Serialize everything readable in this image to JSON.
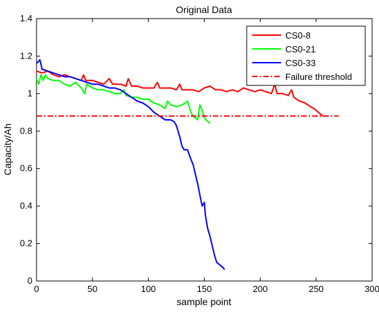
{
  "chart_data": {
    "type": "line",
    "title": "Original Data",
    "xlabel": "sample point",
    "ylabel": "Capacity/Ah",
    "xlim": [
      0,
      300
    ],
    "ylim": [
      0,
      1.4
    ],
    "xticks": [
      "0",
      "50",
      "100",
      "150",
      "200",
      "250",
      "300"
    ],
    "yticks": [
      "0",
      "0.2",
      "0.4",
      "0.6",
      "0.8",
      "1",
      "1.2",
      "1.4"
    ],
    "grid": false,
    "legend_position": "top-right",
    "series": [
      {
        "name": "CS0-8",
        "color": "#ff0000",
        "style": "solid",
        "points": [
          [
            0,
            1.12
          ],
          [
            5,
            1.11
          ],
          [
            10,
            1.12
          ],
          [
            15,
            1.1
          ],
          [
            20,
            1.09
          ],
          [
            25,
            1.1
          ],
          [
            30,
            1.09
          ],
          [
            35,
            1.08
          ],
          [
            40,
            1.07
          ],
          [
            42,
            1.1
          ],
          [
            44,
            1.07
          ],
          [
            50,
            1.07
          ],
          [
            55,
            1.06
          ],
          [
            60,
            1.05
          ],
          [
            65,
            1.08
          ],
          [
            68,
            1.05
          ],
          [
            75,
            1.05
          ],
          [
            80,
            1.04
          ],
          [
            82,
            1.08
          ],
          [
            85,
            1.04
          ],
          [
            90,
            1.04
          ],
          [
            95,
            1.03
          ],
          [
            100,
            1.03
          ],
          [
            105,
            1.03
          ],
          [
            108,
            1.06
          ],
          [
            110,
            1.03
          ],
          [
            115,
            1.03
          ],
          [
            120,
            1.03
          ],
          [
            125,
            1.02
          ],
          [
            128,
            1.05
          ],
          [
            130,
            1.02
          ],
          [
            135,
            1.02
          ],
          [
            140,
            1.02
          ],
          [
            145,
            1.01
          ],
          [
            150,
            1.03
          ],
          [
            155,
            1.04
          ],
          [
            160,
            1.02
          ],
          [
            165,
            1.02
          ],
          [
            170,
            1.01
          ],
          [
            175,
            1.02
          ],
          [
            180,
            1.01
          ],
          [
            185,
            1.03
          ],
          [
            190,
            1.02
          ],
          [
            195,
            1.01
          ],
          [
            200,
            1.02
          ],
          [
            205,
            1.01
          ],
          [
            210,
            1.0
          ],
          [
            213,
            1.05
          ],
          [
            215,
            1.0
          ],
          [
            220,
            1.0
          ],
          [
            225,
            0.99
          ],
          [
            228,
            1.02
          ],
          [
            230,
            0.98
          ],
          [
            235,
            0.96
          ],
          [
            240,
            0.95
          ],
          [
            245,
            0.93
          ],
          [
            248,
            0.92
          ],
          [
            252,
            0.9
          ],
          [
            256,
            0.88
          ]
        ]
      },
      {
        "name": "CS0-21",
        "color": "#00ff00",
        "style": "solid",
        "points": [
          [
            0,
            1.08
          ],
          [
            2,
            1.05
          ],
          [
            4,
            1.1
          ],
          [
            6,
            1.07
          ],
          [
            8,
            1.1
          ],
          [
            10,
            1.08
          ],
          [
            15,
            1.07
          ],
          [
            20,
            1.07
          ],
          [
            25,
            1.05
          ],
          [
            30,
            1.04
          ],
          [
            35,
            1.06
          ],
          [
            40,
            1.03
          ],
          [
            43,
            1.0
          ],
          [
            45,
            1.05
          ],
          [
            50,
            1.03
          ],
          [
            55,
            1.02
          ],
          [
            60,
            1.02
          ],
          [
            65,
            1.01
          ],
          [
            70,
            1.0
          ],
          [
            75,
            1.0
          ],
          [
            78,
            1.02
          ],
          [
            80,
            0.99
          ],
          [
            85,
            0.98
          ],
          [
            90,
            0.98
          ],
          [
            95,
            0.97
          ],
          [
            100,
            0.97
          ],
          [
            105,
            0.95
          ],
          [
            110,
            0.94
          ],
          [
            115,
            0.92
          ],
          [
            117,
            0.96
          ],
          [
            120,
            0.94
          ],
          [
            125,
            0.93
          ],
          [
            130,
            0.94
          ],
          [
            133,
            0.95
          ],
          [
            135,
            0.96
          ],
          [
            138,
            0.9
          ],
          [
            140,
            0.88
          ],
          [
            144,
            0.86
          ],
          [
            146,
            0.94
          ],
          [
            148,
            0.91
          ],
          [
            150,
            0.87
          ],
          [
            155,
            0.84
          ]
        ]
      },
      {
        "name": "CS0-33",
        "color": "#0000ff",
        "style": "solid",
        "points": [
          [
            0,
            1.16
          ],
          [
            3,
            1.18
          ],
          [
            5,
            1.13
          ],
          [
            10,
            1.12
          ],
          [
            15,
            1.11
          ],
          [
            20,
            1.1
          ],
          [
            25,
            1.09
          ],
          [
            30,
            1.09
          ],
          [
            35,
            1.08
          ],
          [
            40,
            1.07
          ],
          [
            45,
            1.06
          ],
          [
            50,
            1.05
          ],
          [
            55,
            1.05
          ],
          [
            60,
            1.04
          ],
          [
            65,
            1.03
          ],
          [
            70,
            1.03
          ],
          [
            75,
            1.02
          ],
          [
            80,
            1.0
          ],
          [
            85,
            0.98
          ],
          [
            90,
            0.96
          ],
          [
            95,
            0.95
          ],
          [
            100,
            0.93
          ],
          [
            105,
            0.9
          ],
          [
            110,
            0.88
          ],
          [
            115,
            0.86
          ],
          [
            120,
            0.86
          ],
          [
            123,
            0.85
          ],
          [
            125,
            0.83
          ],
          [
            128,
            0.77
          ],
          [
            130,
            0.72
          ],
          [
            132,
            0.7
          ],
          [
            135,
            0.7
          ],
          [
            138,
            0.65
          ],
          [
            140,
            0.62
          ],
          [
            142,
            0.57
          ],
          [
            144,
            0.52
          ],
          [
            146,
            0.46
          ],
          [
            148,
            0.4
          ],
          [
            150,
            0.42
          ],
          [
            151,
            0.35
          ],
          [
            153,
            0.28
          ],
          [
            155,
            0.24
          ],
          [
            157,
            0.19
          ],
          [
            159,
            0.14
          ],
          [
            161,
            0.1
          ],
          [
            163,
            0.09
          ],
          [
            165,
            0.08
          ],
          [
            167,
            0.07
          ],
          [
            168,
            0.06
          ]
        ]
      },
      {
        "name": "Failure threshold",
        "color": "#ff0000",
        "style": "dashdot",
        "points": [
          [
            0,
            0.88
          ],
          [
            270,
            0.88
          ]
        ]
      }
    ]
  }
}
